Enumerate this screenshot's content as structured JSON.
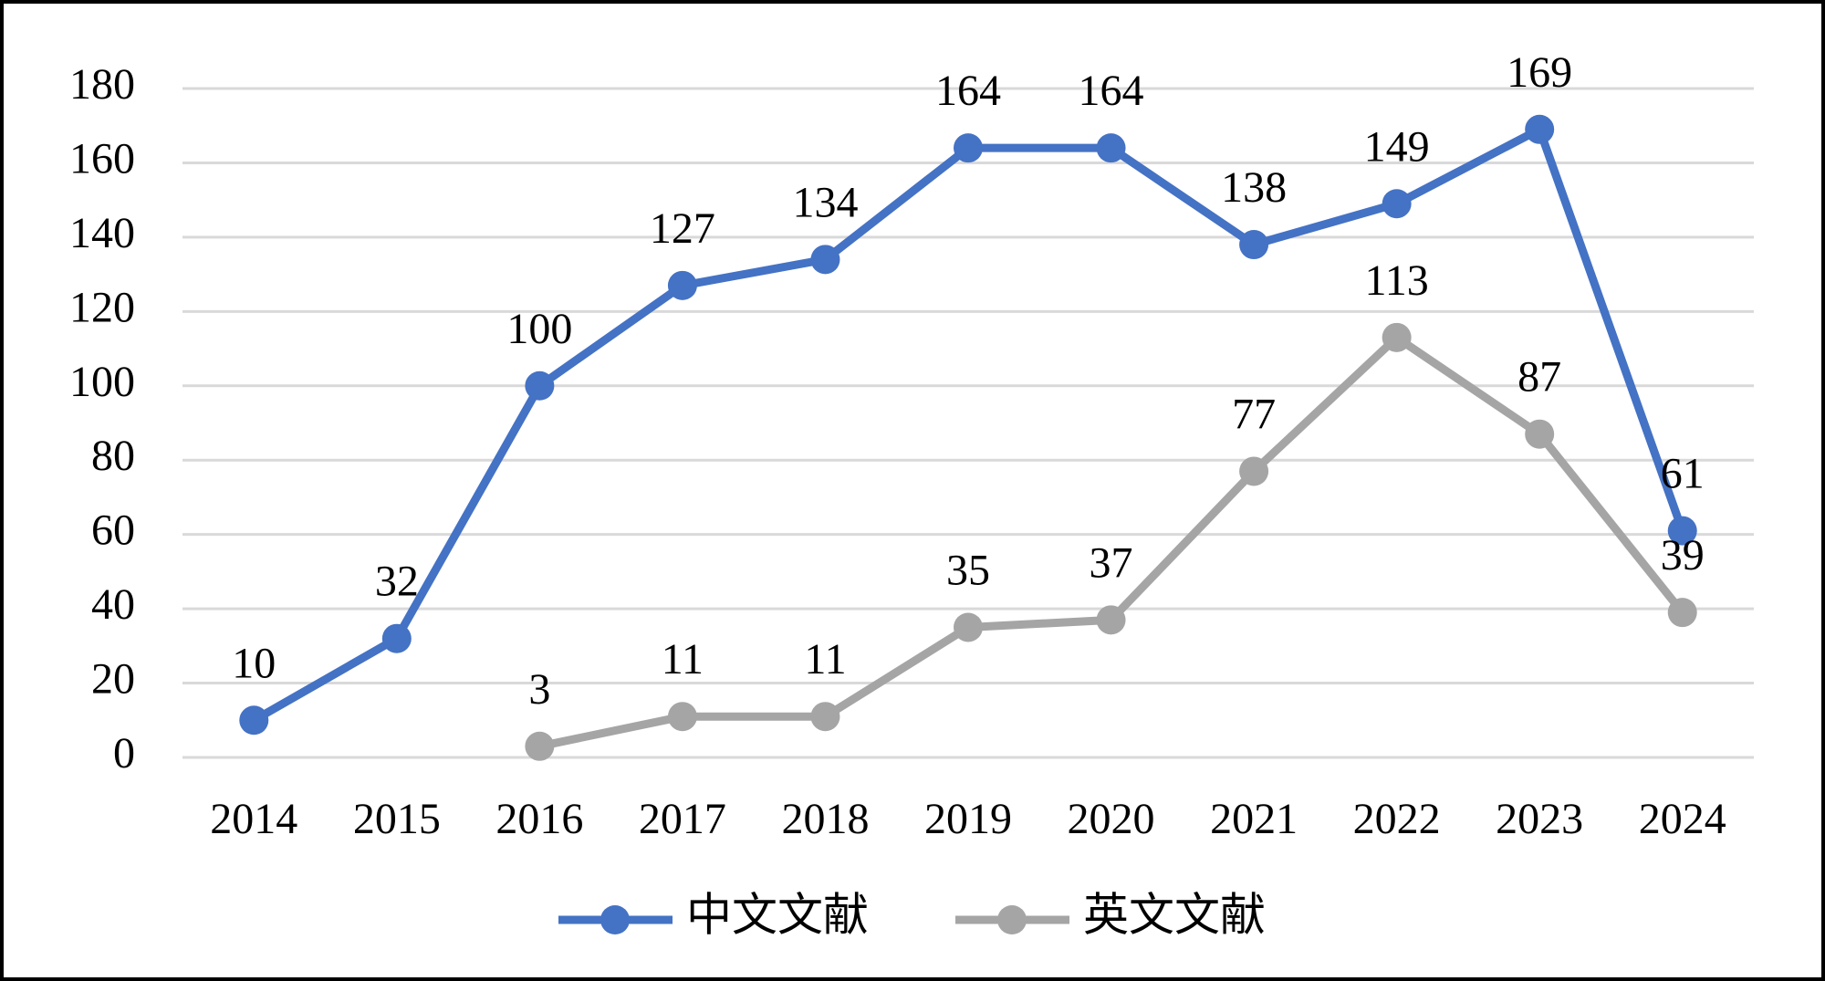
{
  "chart_data": {
    "type": "line",
    "categories": [
      "2014",
      "2015",
      "2016",
      "2017",
      "2018",
      "2019",
      "2020",
      "2021",
      "2022",
      "2023",
      "2024"
    ],
    "series": [
      {
        "name": "中文文献",
        "color": "#4472c4",
        "values": [
          10,
          32,
          100,
          127,
          134,
          164,
          164,
          138,
          149,
          169,
          61
        ]
      },
      {
        "name": "英文文献",
        "color": "#a5a5a5",
        "values": [
          null,
          null,
          3,
          11,
          11,
          35,
          37,
          77,
          113,
          87,
          39
        ]
      }
    ],
    "ylim": [
      0,
      180
    ],
    "yticks": [
      0,
      20,
      40,
      60,
      80,
      100,
      120,
      140,
      160,
      180
    ],
    "grid": true,
    "legend": "bottom"
  }
}
